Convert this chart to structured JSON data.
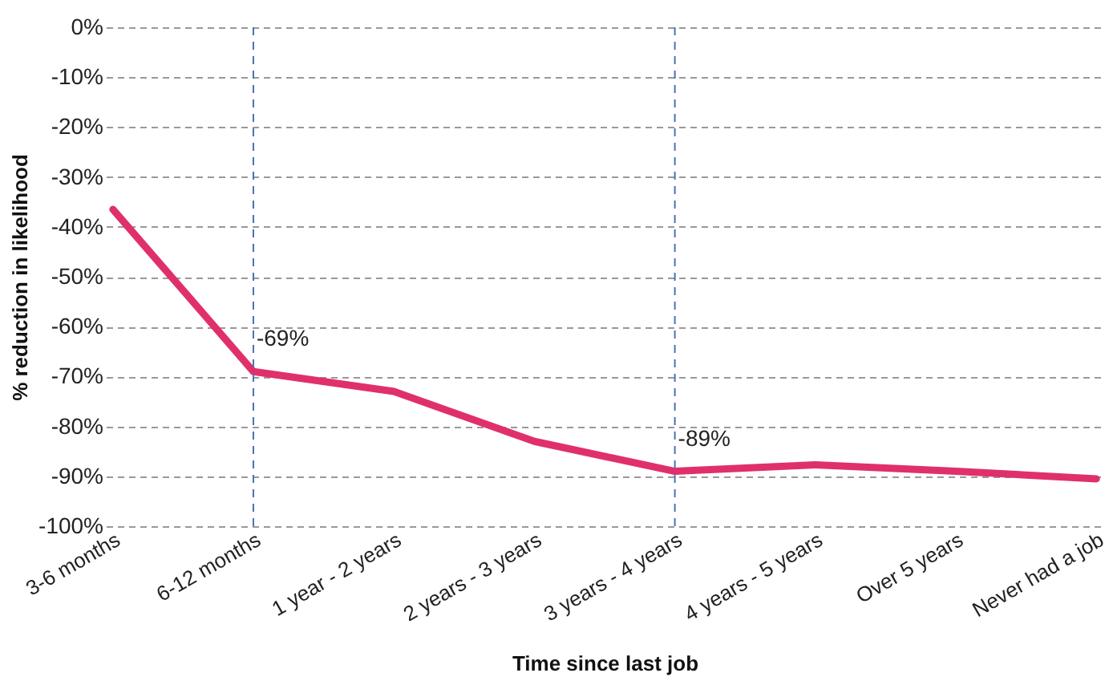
{
  "chart_data": {
    "type": "line",
    "xlabel": "Time since last job",
    "ylabel": "% reduction in likelihood",
    "categories": [
      "3-6 months",
      "6-12 months",
      "1 year - 2 years",
      "2 years - 3 years",
      "3 years - 4 years",
      "4 years - 5 years",
      "Over 5 years",
      "Never had a job"
    ],
    "series": [
      {
        "color": "#e0306a",
        "values": [
          -36.5,
          -69,
          -73,
          -83,
          -89,
          -87.7,
          -89,
          -90.5
        ]
      }
    ],
    "ylim": [
      -100,
      0
    ],
    "yticks": [
      {
        "value": 0,
        "label": "0%"
      },
      {
        "value": -10,
        "label": "-10%"
      },
      {
        "value": -20,
        "label": "-20%"
      },
      {
        "value": -30,
        "label": "-30%"
      },
      {
        "value": -40,
        "label": "-40%"
      },
      {
        "value": -50,
        "label": "-50%"
      },
      {
        "value": -60,
        "label": "-60%"
      },
      {
        "value": -70,
        "label": "-70%"
      },
      {
        "value": -80,
        "label": "-80%"
      },
      {
        "value": -90,
        "label": "-90%"
      },
      {
        "value": -100,
        "label": "-100%"
      }
    ],
    "grid": "y",
    "marker": "none",
    "line_style": "solid",
    "ref_lines": [
      {
        "axis": "x",
        "value": "6-12 months",
        "color": "#4a72b8",
        "line_style": "dashed"
      },
      {
        "axis": "x",
        "value": "3 years - 4 years",
        "color": "#4a72b8",
        "line_style": "dashed"
      }
    ],
    "annotations": [
      {
        "text": "-69%",
        "x": "6-12 months",
        "y": -69
      },
      {
        "text": "-89%",
        "x": "3 years - 4 years",
        "y": -89
      }
    ]
  }
}
